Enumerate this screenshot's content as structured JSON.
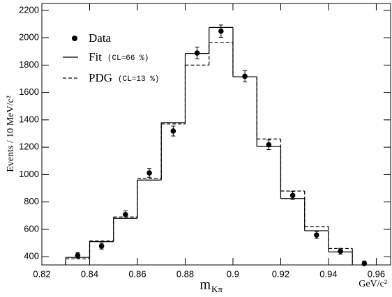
{
  "chart_data": {
    "type": "histogram",
    "ylabel": "Events / 10 MeV/c²",
    "xlabel": {
      "main": "m",
      "sub": "Kπ"
    },
    "xunit": "GeV/c²",
    "xlim": [
      0.82,
      0.966
    ],
    "ylim": [
      340,
      2250
    ],
    "xticks": [
      0.82,
      0.84,
      0.86,
      0.88,
      0.9,
      0.92,
      0.94,
      0.96
    ],
    "yticks": [
      400,
      600,
      800,
      1000,
      1200,
      1400,
      1600,
      1800,
      2000,
      2200
    ],
    "bins": [
      0.83,
      0.84,
      0.85,
      0.86,
      0.87,
      0.88,
      0.89,
      0.9,
      0.91,
      0.92,
      0.93,
      0.94,
      0.95
    ],
    "points": {
      "name": "Data",
      "x": [
        0.835,
        0.845,
        0.855,
        0.865,
        0.875,
        0.885,
        0.895,
        0.905,
        0.915,
        0.925,
        0.935,
        0.945,
        0.955
      ],
      "values": [
        410,
        478,
        708,
        1012,
        1318,
        1888,
        2048,
        1718,
        1218,
        848,
        558,
        440,
        350
      ],
      "errors": [
        20,
        22,
        27,
        32,
        36,
        43,
        45,
        41,
        35,
        29,
        24,
        21,
        19
      ]
    },
    "series": [
      {
        "name": "Fit",
        "note": "(CL=66 %)",
        "style": "solid",
        "color": "#000000",
        "values": [
          395,
          510,
          680,
          960,
          1380,
          1885,
          2075,
          1715,
          1205,
          825,
          590,
          435
        ]
      },
      {
        "name": "PDG",
        "note": "(CL=13 %)",
        "style": "dashed",
        "color": "#000000",
        "values": [
          385,
          515,
          690,
          970,
          1370,
          1800,
          1965,
          1715,
          1260,
          880,
          620,
          460
        ]
      }
    ]
  }
}
